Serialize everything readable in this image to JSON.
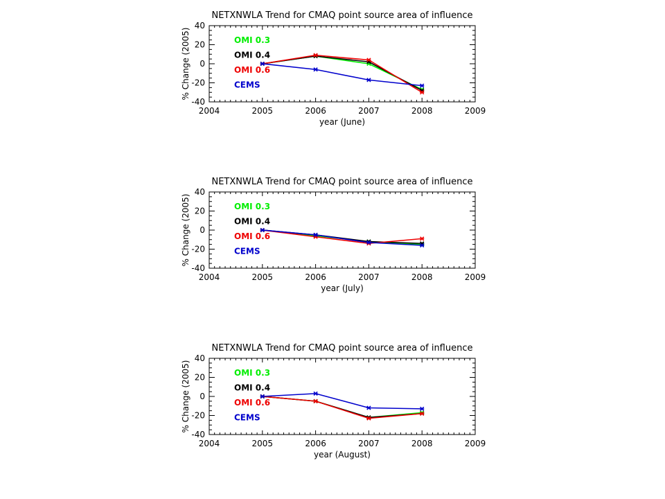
{
  "chart_data": [
    {
      "type": "line",
      "title": "NETXNWLA Trend for CMAQ point source area of influence",
      "xlabel": "year (June)",
      "ylabel": "% Change (2005)",
      "xlim": [
        2004,
        2009
      ],
      "ylim": [
        -40,
        40
      ],
      "xticks": [
        2004,
        2005,
        2006,
        2007,
        2008,
        2009
      ],
      "yticks": [
        -40,
        -20,
        0,
        20,
        40
      ],
      "legend_position": "top-left",
      "x": [
        2005,
        2006,
        2007,
        2008
      ],
      "series": [
        {
          "name": "OMI 0.3",
          "color": "#00ee00",
          "values": [
            0,
            8,
            0,
            -27
          ]
        },
        {
          "name": "OMI 0.4",
          "color": "#000000",
          "values": [
            0,
            8,
            2,
            -28
          ]
        },
        {
          "name": "OMI 0.6",
          "color": "#ee0000",
          "values": [
            0,
            9,
            4,
            -30
          ]
        },
        {
          "name": "CEMS",
          "color": "#0000cc",
          "values": [
            0,
            -6,
            -17,
            -23
          ]
        }
      ]
    },
    {
      "type": "line",
      "title": "NETXNWLA Trend for CMAQ point source area of influence",
      "xlabel": "year (July)",
      "ylabel": "% Change (2005)",
      "xlim": [
        2004,
        2009
      ],
      "ylim": [
        -40,
        40
      ],
      "xticks": [
        2004,
        2005,
        2006,
        2007,
        2008,
        2009
      ],
      "yticks": [
        -40,
        -20,
        0,
        20,
        40
      ],
      "legend_position": "top-left",
      "x": [
        2005,
        2006,
        2007,
        2008
      ],
      "series": [
        {
          "name": "OMI 0.3",
          "color": "#00ee00",
          "values": [
            0,
            -6,
            -12,
            -15
          ]
        },
        {
          "name": "OMI 0.4",
          "color": "#000000",
          "values": [
            0,
            -5,
            -12,
            -14
          ]
        },
        {
          "name": "OMI 0.6",
          "color": "#ee0000",
          "values": [
            0,
            -7,
            -14,
            -9
          ]
        },
        {
          "name": "CEMS",
          "color": "#0000cc",
          "values": [
            0,
            -5,
            -13,
            -16
          ]
        }
      ]
    },
    {
      "type": "line",
      "title": "NETXNWLA Trend for CMAQ point source area of influence",
      "xlabel": "year (August)",
      "ylabel": "% Change (2005)",
      "xlim": [
        2004,
        2009
      ],
      "ylim": [
        -40,
        40
      ],
      "xticks": [
        2004,
        2005,
        2006,
        2007,
        2008,
        2009
      ],
      "yticks": [
        -40,
        -20,
        0,
        20,
        40
      ],
      "legend_position": "top-left",
      "x": [
        2005,
        2006,
        2007,
        2008
      ],
      "series": [
        {
          "name": "OMI 0.3",
          "color": "#00ee00",
          "values": [
            0,
            -5,
            -22,
            -17
          ]
        },
        {
          "name": "OMI 0.4",
          "color": "#000000",
          "values": [
            0,
            -5,
            -22,
            -18
          ]
        },
        {
          "name": "OMI 0.6",
          "color": "#ee0000",
          "values": [
            0,
            -5,
            -23,
            -18
          ]
        },
        {
          "name": "CEMS",
          "color": "#0000cc",
          "values": [
            0,
            3,
            -12,
            -13
          ]
        }
      ]
    }
  ]
}
